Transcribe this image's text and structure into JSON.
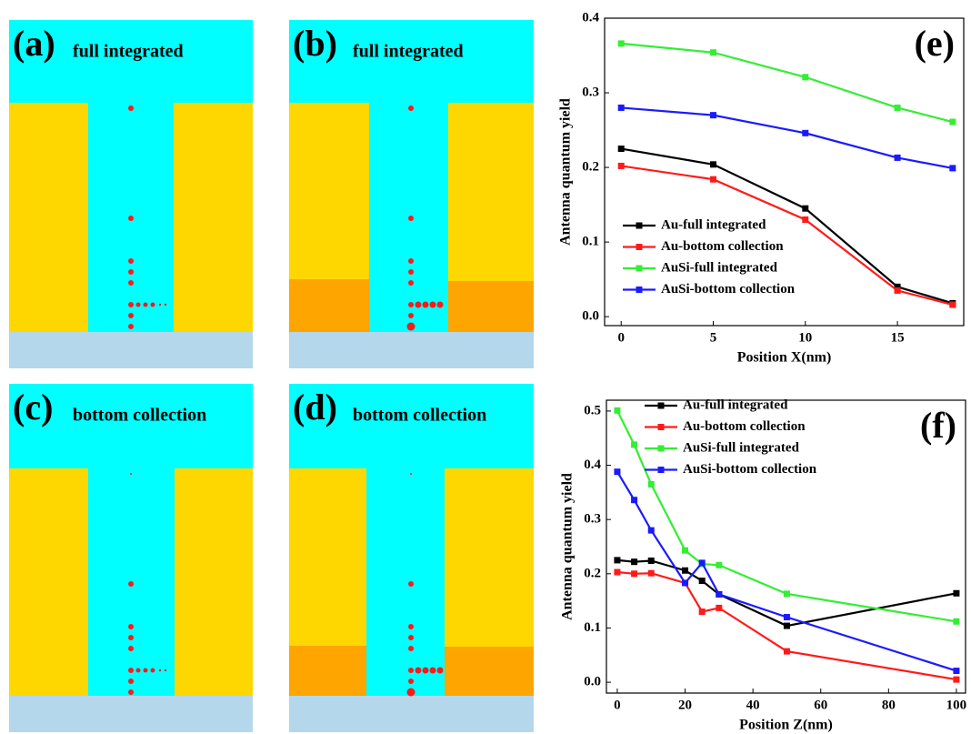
{
  "panels": [
    {
      "label": "(a)",
      "caption": "full integrated"
    },
    {
      "label": "(b)",
      "caption": "full integrated"
    },
    {
      "label": "(c)",
      "caption": "bottom collection"
    },
    {
      "label": "(d)",
      "caption": "bottom collection"
    }
  ],
  "chart_data": [
    {
      "type": "line",
      "panel_label": "(e)",
      "x_label": "Position X(nm)",
      "y_label": "Antenna quantum yield",
      "x": [
        0,
        5,
        10,
        15,
        18
      ],
      "xlim": [
        -0.9,
        18.6
      ],
      "xticks": [
        0,
        5,
        10,
        15
      ],
      "ylim": [
        -0.012,
        0.4
      ],
      "yticks": [
        {
          "value": 0,
          "label": "0.0"
        },
        0.1,
        0.2,
        0.3,
        0.4
      ],
      "legend": "lower left",
      "series": [
        {
          "name": "Au-full integrated",
          "color": "#000000",
          "values": [
            0.225,
            0.204,
            0.145,
            0.04,
            0.018
          ]
        },
        {
          "name": "Au-bottom collection",
          "color": "#ff1a1a",
          "values": [
            0.202,
            0.184,
            0.13,
            0.035,
            0.016
          ]
        },
        {
          "name": "AuSi-full integrated",
          "color": "#33ee33",
          "values": [
            0.366,
            0.354,
            0.321,
            0.28,
            0.261
          ]
        },
        {
          "name": "AuSi-bottom collection",
          "color": "#1a1aff",
          "values": [
            0.28,
            0.27,
            0.246,
            0.213,
            0.199
          ]
        }
      ]
    },
    {
      "type": "line",
      "panel_label": "(f)",
      "x_label": "Position Z(nm)",
      "y_label": "Antenna quantum yield",
      "x": [
        0,
        5,
        10,
        20,
        25,
        30,
        50,
        100
      ],
      "xlim": [
        -3.2,
        102.7
      ],
      "xticks": [
        0,
        20,
        40,
        60,
        80,
        100
      ],
      "ylim": [
        -0.02,
        0.52
      ],
      "yticks": [
        {
          "value": 0,
          "label": "0.0"
        },
        0.1,
        0.2,
        0.3,
        0.4,
        0.5
      ],
      "legend": "upper center",
      "series": [
        {
          "name": "Au-full integrated",
          "color": "#000000",
          "values": [
            0.225,
            0.222,
            0.224,
            0.206,
            0.187,
            0.162,
            0.104,
            0.164
          ]
        },
        {
          "name": "Au-bottom collection",
          "color": "#ff1a1a",
          "values": [
            0.203,
            0.2,
            0.201,
            0.183,
            0.13,
            0.137,
            0.057,
            0.005
          ]
        },
        {
          "name": "AuSi-full integrated",
          "color": "#33ee33",
          "values": [
            0.501,
            0.438,
            0.365,
            0.243,
            0.218,
            0.216,
            0.163,
            0.112
          ]
        },
        {
          "name": "AuSi-bottom collection",
          "color": "#1a1aff",
          "values": [
            0.388,
            0.336,
            0.28,
            0.183,
            0.22,
            0.162,
            0.12,
            0.021
          ]
        }
      ]
    }
  ]
}
